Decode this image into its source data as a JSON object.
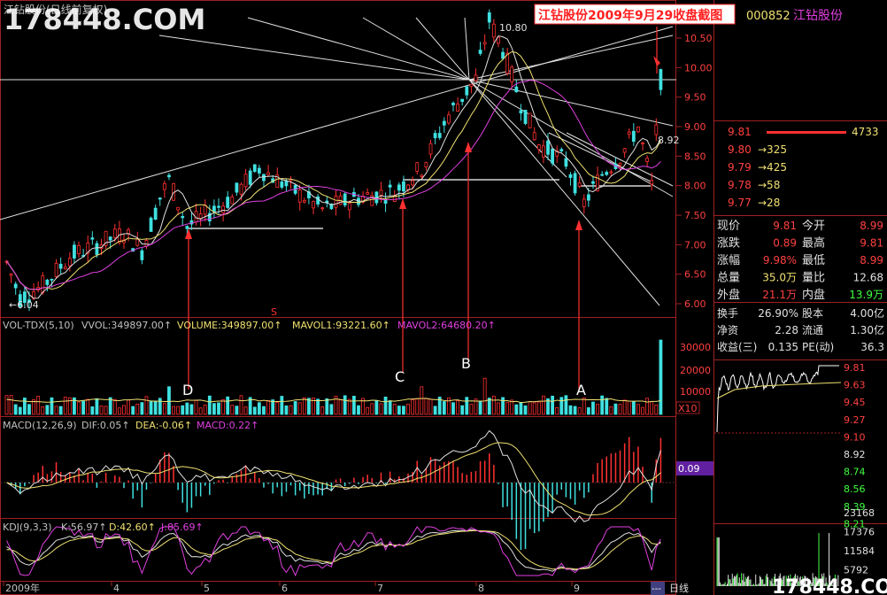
{
  "window": {
    "title": "江钻股份(日线前复权)",
    "watermark": "178448.COM",
    "watermark_bottom": "178448.COM",
    "annotation_title": "江钻股份2009年9月29收盘截图"
  },
  "stock": {
    "code": "000852",
    "name": "江钻股份"
  },
  "price_chart": {
    "high_label": "10.80",
    "low_label": "←6.04",
    "right_label": "8.92",
    "yticks": [
      "10.50",
      "10.00",
      "9.50",
      "9.00",
      "8.50",
      "8.00",
      "7.50",
      "7.00",
      "6.50",
      "6.00"
    ],
    "marker_letters": [
      "D",
      "C",
      "B",
      "A"
    ],
    "s_marker": "S"
  },
  "volume_panel": {
    "header": [
      {
        "text": "VOL-TDX(5,10)",
        "color": "#c0c0c0"
      },
      {
        "text": "VVOL:349897.00↑",
        "color": "#c0c0c0"
      },
      {
        "text": "VOLUME:349897.00↑",
        "color": "#f0e070"
      },
      {
        "text": "MAVOL1:93221.60↑",
        "color": "#f0e070"
      },
      {
        "text": "MAVOL2:64680.20↑",
        "color": "#e040e0"
      }
    ],
    "yticks": [
      "30000",
      "20000",
      "10000"
    ],
    "unit": "X10"
  },
  "macd_panel": {
    "header": [
      {
        "text": "MACD(12,26,9)",
        "color": "#c0c0c0"
      },
      {
        "text": "DIF:0.05↑",
        "color": "#c0c0c0"
      },
      {
        "text": "DEA:-0.06↑",
        "color": "#f0e070"
      },
      {
        "text": "MACD:0.22↑",
        "color": "#e040e0"
      }
    ],
    "value_badge": "0.09"
  },
  "kdj_panel": {
    "header": [
      {
        "text": "KDJ(9,3,3)",
        "color": "#c0c0c0"
      },
      {
        "text": "K:56.97↑",
        "color": "#c0c0c0"
      },
      {
        "text": "D:42.60↑",
        "color": "#f0e070"
      },
      {
        "text": "J:85.69↑",
        "color": "#e040e0"
      }
    ]
  },
  "time_axis": {
    "labels": [
      "2009年",
      "4",
      "5",
      "6",
      "7",
      "8",
      "9"
    ],
    "period_tab": "日线",
    "ellipsis": "---"
  },
  "order_book": [
    {
      "price": "9.81",
      "volume": "4733"
    },
    {
      "price": "9.80",
      "volume": "325"
    },
    {
      "price": "9.79",
      "volume": "425"
    },
    {
      "price": "9.78",
      "volume": "58"
    },
    {
      "price": "9.77",
      "volume": "28"
    }
  ],
  "quote_table": [
    {
      "l1": "现价",
      "v1": "9.81",
      "c1": "#ff4040",
      "l2": "今开",
      "v2": "8.99",
      "c2": "#ff4040"
    },
    {
      "l1": "涨跌",
      "v1": "0.89",
      "c1": "#ff4040",
      "l2": "最高",
      "v2": "9.81",
      "c2": "#ff4040"
    },
    {
      "l1": "涨幅",
      "v1": "9.98%",
      "c1": "#ff4040",
      "l2": "最低",
      "v2": "8.99",
      "c2": "#ff4040"
    },
    {
      "l1": "总量",
      "v1": "35.0万",
      "c1": "#f0e070",
      "l2": "量比",
      "v2": "12.68",
      "c2": "#e0e0e0"
    },
    {
      "l1": "外盘",
      "v1": "21.1万",
      "c1": "#ff4040",
      "l2": "内盘",
      "v2": "13.9万",
      "c2": "#40ff40"
    }
  ],
  "fundamentals": [
    {
      "l1": "换手",
      "v1": "26.90%",
      "l2": "股本",
      "v2": "4.00亿"
    },
    {
      "l1": "净资",
      "v1": "2.28",
      "l2": "流通",
      "v2": "1.30亿"
    },
    {
      "l1": "收益(三)",
      "v1": "0.135",
      "l2": "PE(动)",
      "v2": "36.3"
    }
  ],
  "intraday": {
    "price_ticks": [
      {
        "v": "9.81",
        "c": "#ff4040"
      },
      {
        "v": "9.63",
        "c": "#ff4040"
      },
      {
        "v": "9.45",
        "c": "#ff4040"
      },
      {
        "v": "9.27",
        "c": "#ff4040"
      },
      {
        "v": "9.10",
        "c": "#ff4040"
      },
      {
        "v": "8.92",
        "c": "#e0e0e0"
      },
      {
        "v": "8.74",
        "c": "#40ff40"
      },
      {
        "v": "8.56",
        "c": "#40ff40"
      },
      {
        "v": "8.39",
        "c": "#40ff40"
      },
      {
        "v": "8.21",
        "c": "#40ff40"
      }
    ],
    "volume_ticks": [
      "23168",
      "17376",
      "11584",
      "5792"
    ]
  },
  "colors": {
    "up": "#ff3030",
    "down": "#40e0e0",
    "ma5": "#e0e0e0",
    "ma10": "#f0e070",
    "ma20": "#e040e0",
    "grid": "#802020"
  }
}
